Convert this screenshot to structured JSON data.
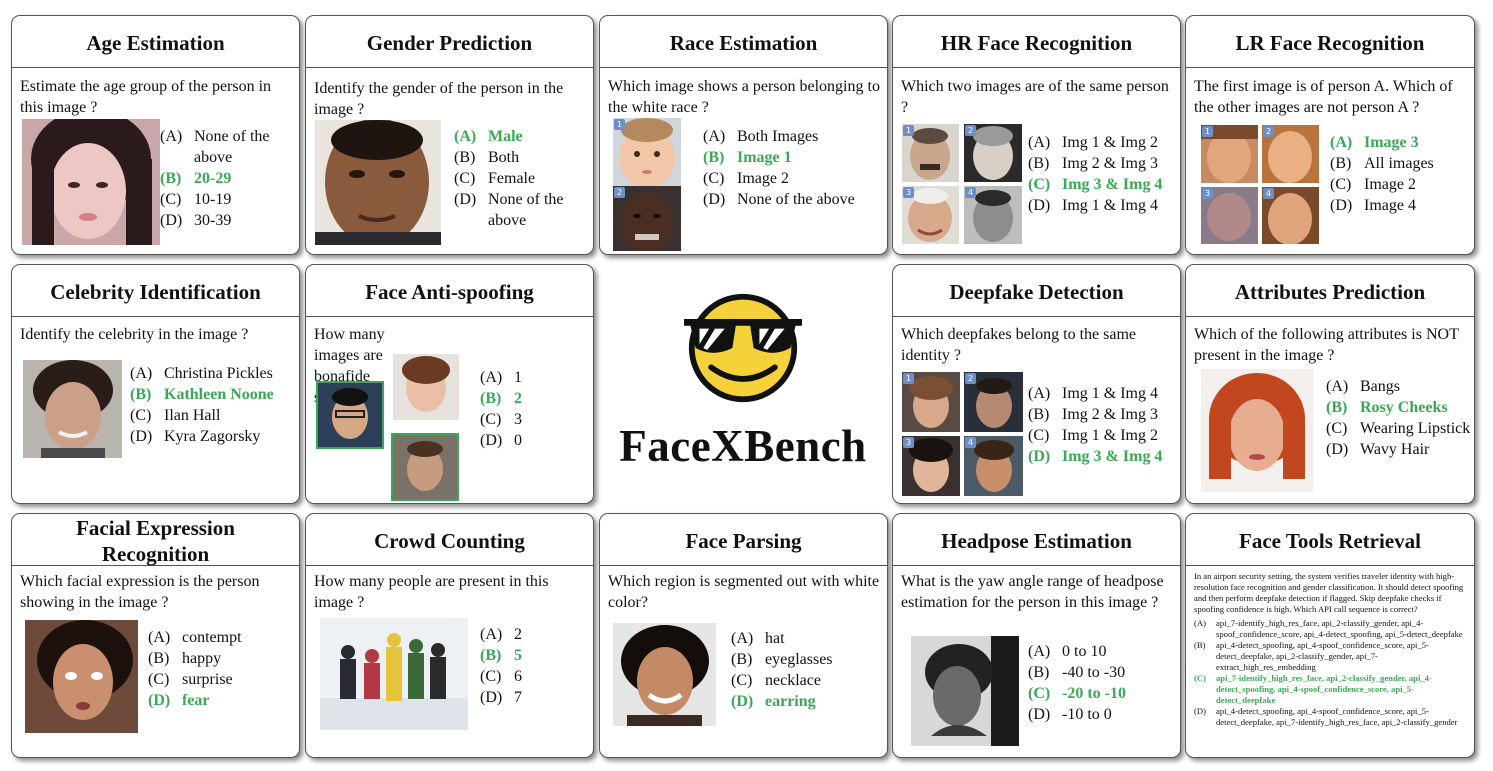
{
  "brand": "FaceXBench",
  "colors": {
    "correct": "#3aa855",
    "border": "#555555",
    "badge": "#6d8fc7"
  },
  "cards": {
    "age": {
      "title": "Age Estimation",
      "question": "Estimate the age group of the person in this image ?",
      "options": [
        {
          "l": "(A)",
          "t": "None of the above"
        },
        {
          "l": "(B)",
          "t": "20-29"
        },
        {
          "l": "(C)",
          "t": "10-19"
        },
        {
          "l": "(D)",
          "t": "30-39"
        }
      ],
      "correct": 1
    },
    "gender": {
      "title": "Gender Prediction",
      "question": "Identify the gender of the person in the image ?",
      "options": [
        {
          "l": "(A)",
          "t": "Male"
        },
        {
          "l": "(B)",
          "t": "Both"
        },
        {
          "l": "(C)",
          "t": "Female"
        },
        {
          "l": "(D)",
          "t": "None of the above"
        }
      ],
      "correct": 0
    },
    "race": {
      "title": "Race Estimation",
      "question": "Which image shows a person belonging to the white race ?",
      "options": [
        {
          "l": "(A)",
          "t": "Both Images"
        },
        {
          "l": "(B)",
          "t": "Image 1"
        },
        {
          "l": "(C)",
          "t": "Image 2"
        },
        {
          "l": "(D)",
          "t": "None of the above"
        }
      ],
      "correct": 1,
      "badges": [
        "1",
        "2"
      ]
    },
    "hr": {
      "title": "HR Face Recognition",
      "question": "Which two images are of the same person ?",
      "options": [
        {
          "l": "(A)",
          "t": "Img 1 & Img 2"
        },
        {
          "l": "(B)",
          "t": "Img 2 & Img 3"
        },
        {
          "l": "(C)",
          "t": "Img 3 & Img 4"
        },
        {
          "l": "(D)",
          "t": "Img 1 & Img 4"
        }
      ],
      "correct": 2,
      "badges": [
        "1",
        "2",
        "3",
        "4"
      ]
    },
    "lr": {
      "title": "LR Face Recognition",
      "question": "The first image is of person A. Which of the other images are not person A ?",
      "options": [
        {
          "l": "(A)",
          "t": "Image 3"
        },
        {
          "l": "(B)",
          "t": "All images"
        },
        {
          "l": "(C)",
          "t": "Image 2"
        },
        {
          "l": "(D)",
          "t": "Image 4"
        }
      ],
      "correct": 0,
      "badges": [
        "1",
        "2",
        "3",
        "4"
      ]
    },
    "celeb": {
      "title": "Celebrity Identification",
      "question": "Identify the celebrity in the image ?",
      "options": [
        {
          "l": "(A)",
          "t": "Christina Pickles"
        },
        {
          "l": "(B)",
          "t": "Kathleen Noone"
        },
        {
          "l": "(C)",
          "t": "Ilan Hall"
        },
        {
          "l": "(D)",
          "t": "Kyra Zagorsky"
        }
      ],
      "correct": 1
    },
    "spoof": {
      "title": "Face Anti-spoofing",
      "question": "How many images are bonafide samples ?",
      "options": [
        {
          "l": "(A)",
          "t": "1"
        },
        {
          "l": "(B)",
          "t": "2"
        },
        {
          "l": "(C)",
          "t": "3"
        },
        {
          "l": "(D)",
          "t": "0"
        }
      ],
      "correct": 1
    },
    "deepfake": {
      "title": "Deepfake Detection",
      "question": "Which deepfakes belong to the same identity ?",
      "options": [
        {
          "l": "(A)",
          "t": "Img 1 & Img 4"
        },
        {
          "l": "(B)",
          "t": "Img 2 & Img 3"
        },
        {
          "l": "(C)",
          "t": "Img 1 & Img 2"
        },
        {
          "l": "(D)",
          "t": "Img 3 & Img 4"
        }
      ],
      "correct": 3,
      "badges": [
        "1",
        "2",
        "3",
        "4"
      ]
    },
    "attr": {
      "title": "Attributes Prediction",
      "question": "Which of the following attributes is NOT present in the image ?",
      "options": [
        {
          "l": "(A)",
          "t": "Bangs"
        },
        {
          "l": "(B)",
          "t": "Rosy Cheeks"
        },
        {
          "l": "(C)",
          "t": "Wearing Lipstick"
        },
        {
          "l": "(D)",
          "t": "Wavy Hair"
        }
      ],
      "correct": 1
    },
    "fer": {
      "title": "Facial Expression Recognition",
      "question": "Which facial expression is the person showing in the image ?",
      "options": [
        {
          "l": "(A)",
          "t": "contempt"
        },
        {
          "l": "(B)",
          "t": "happy"
        },
        {
          "l": "(C)",
          "t": "surprise"
        },
        {
          "l": "(D)",
          "t": "fear"
        }
      ],
      "correct": 3
    },
    "crowd": {
      "title": "Crowd Counting",
      "question": "How many people are present in this image ?",
      "options": [
        {
          "l": "(A)",
          "t": "2"
        },
        {
          "l": "(B)",
          "t": "5"
        },
        {
          "l": "(C)",
          "t": "6"
        },
        {
          "l": "(D)",
          "t": "7"
        }
      ],
      "correct": 1
    },
    "parse": {
      "title": "Face Parsing",
      "question": "Which region is segmented out with white color?",
      "options": [
        {
          "l": "(A)",
          "t": "hat"
        },
        {
          "l": "(B)",
          "t": "eyeglasses"
        },
        {
          "l": "(C)",
          "t": "necklace"
        },
        {
          "l": "(D)",
          "t": "earring"
        }
      ],
      "correct": 3
    },
    "head": {
      "title": "Headpose Estimation",
      "question": "What is the yaw angle range of headpose estimation for the person in this image ?",
      "options": [
        {
          "l": "(A)",
          "t": "0 to 10"
        },
        {
          "l": "(B)",
          "t": "-40 to -30"
        },
        {
          "l": "(C)",
          "t": "-20 to -10"
        },
        {
          "l": "(D)",
          "t": "-10 to 0"
        }
      ],
      "correct": 2
    },
    "tools": {
      "title": "Face Tools Retrieval",
      "question": "In an airport security setting, the system verifies traveler identity with high-resolution face recognition and gender classification. It should detect spoofing and then perform deepfake detection if flagged. Skip deepfake checks if spoofing confidence is high. Which API call sequence is correct?",
      "options": [
        {
          "l": "(A)",
          "t": "api_7-identify_high_res_face, api_2-classify_gender, api_4-spoof_confidence_score, api_4-detect_spoofing, api_5-detect_deepfake"
        },
        {
          "l": "(B)",
          "t": "api_4-detect_spoofing, api_4-spoof_confidence_score, api_5-detect_deepfake, api_2-classify_gender, api_7-extract_high_res_embedding"
        },
        {
          "l": "(C)",
          "t": "api_7-identify_high_res_face, api_2-classify_gender, api_4-detect_spoofing, api_4-spoof_confidence_score, api_5-detect_deepfake"
        },
        {
          "l": "(D)",
          "t": "api_4-detect_spoofing, api_4-spoof_confidence_score, api_5-detect_deepfake, api_7-identify_high_res_face, api_2-classify_gender"
        }
      ],
      "correct": 2
    }
  }
}
